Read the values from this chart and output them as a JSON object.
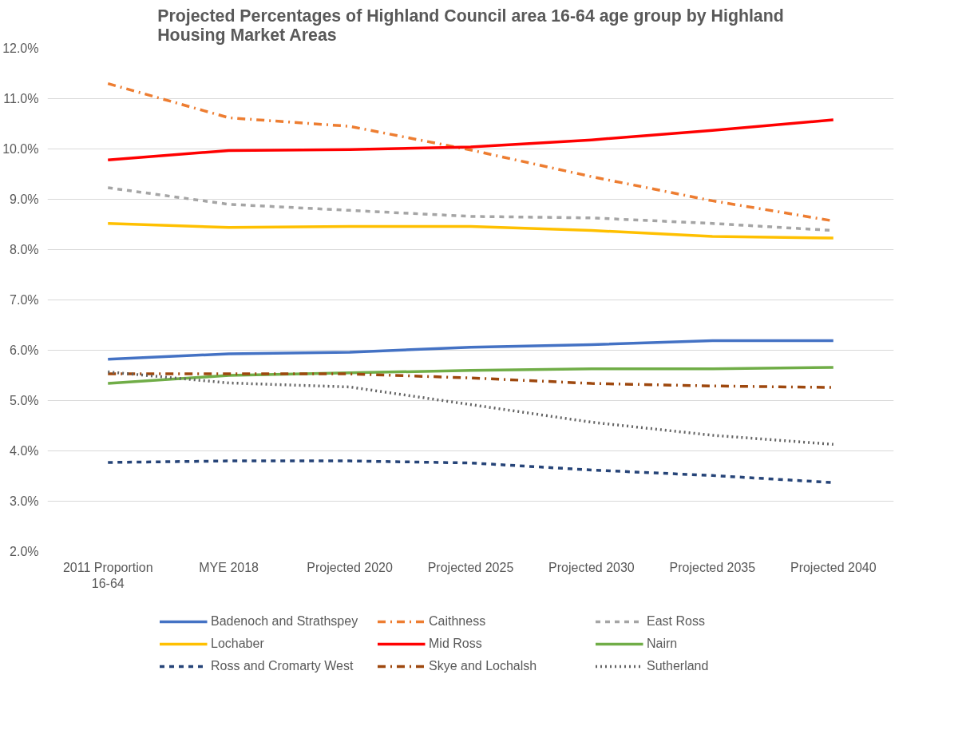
{
  "chart_data": {
    "type": "line",
    "title": "Projected Percentages of Highland Council area 16-64 age group by Highland Housing Market Areas",
    "categories": [
      "2011 Proportion\n16-64",
      "MYE 2018",
      "Projected 2020",
      "Projected 2025",
      "Projected 2030",
      "Projected 2035",
      "Projected 2040"
    ],
    "ylim": [
      2.0,
      12.0
    ],
    "yticks": [
      {
        "value": 2,
        "label": "2.0%"
      },
      {
        "value": 3,
        "label": "3.0%"
      },
      {
        "value": 4,
        "label": "4.0%"
      },
      {
        "value": 5,
        "label": "5.0%"
      },
      {
        "value": 6,
        "label": "6.0%"
      },
      {
        "value": 7,
        "label": "7.0%"
      },
      {
        "value": 8,
        "label": "8.0%"
      },
      {
        "value": 9,
        "label": "9.0%"
      },
      {
        "value": 10,
        "label": "10.0%"
      },
      {
        "value": 11,
        "label": "11.0%"
      },
      {
        "value": 12,
        "label": "12.0%"
      }
    ],
    "grid": "y",
    "legend": "bottom",
    "series": [
      {
        "name": "Badenoch and Strathspey",
        "color": "#4472c4",
        "line_style": "solid",
        "values": [
          5.82,
          5.93,
          5.96,
          6.06,
          6.11,
          6.19,
          6.19
        ]
      },
      {
        "name": "Caithness",
        "color": "#ed7d31",
        "line_style": "dashdot",
        "values": [
          11.3,
          10.62,
          10.45,
          9.98,
          9.45,
          8.97,
          8.57
        ]
      },
      {
        "name": "East Ross",
        "color": "#a5a5a5",
        "line_style": "dashed",
        "values": [
          9.23,
          8.9,
          8.78,
          8.66,
          8.63,
          8.52,
          8.38
        ]
      },
      {
        "name": "Lochaber",
        "color": "#ffc000",
        "line_style": "solid",
        "values": [
          8.52,
          8.44,
          8.46,
          8.46,
          8.38,
          8.26,
          8.23
        ]
      },
      {
        "name": "Mid Ross",
        "color": "#ff0000",
        "line_style": "solid",
        "values": [
          9.78,
          9.97,
          9.99,
          10.04,
          10.18,
          10.37,
          10.58
        ]
      },
      {
        "name": "Nairn",
        "color": "#70ad47",
        "line_style": "solid",
        "values": [
          5.34,
          5.5,
          5.55,
          5.6,
          5.63,
          5.63,
          5.66
        ]
      },
      {
        "name": "Ross and Cromarty West",
        "color": "#264478",
        "line_style": "dashed",
        "values": [
          3.77,
          3.8,
          3.8,
          3.76,
          3.62,
          3.51,
          3.37
        ]
      },
      {
        "name": "Skye and Lochalsh",
        "color": "#9e480e",
        "line_style": "dashdot",
        "values": [
          5.53,
          5.53,
          5.53,
          5.45,
          5.34,
          5.29,
          5.26
        ]
      },
      {
        "name": "Sutherland",
        "color": "#636363",
        "line_style": "dotted",
        "values": [
          5.57,
          5.35,
          5.27,
          4.92,
          4.57,
          4.31,
          4.13
        ]
      }
    ]
  }
}
